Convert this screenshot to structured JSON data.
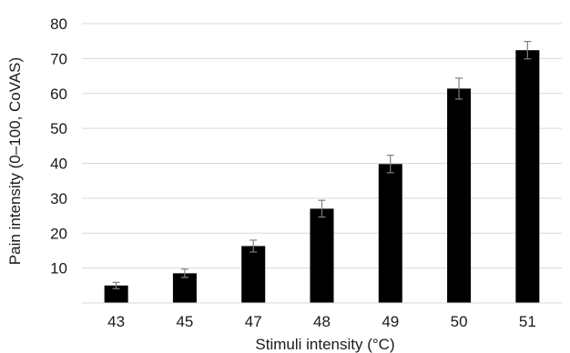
{
  "chart_data": {
    "type": "bar",
    "categories": [
      "43",
      "45",
      "47",
      "48",
      "49",
      "50",
      "51"
    ],
    "values": [
      5,
      8.5,
      16.3,
      27,
      39.8,
      61.4,
      72.4
    ],
    "error": [
      0.9,
      1.2,
      1.7,
      2.4,
      2.5,
      3.0,
      2.5
    ],
    "xlabel": "Stimuli intensity (°C)",
    "ylabel": "Pain intensity (0–100, CoVAS)",
    "ylim": [
      0,
      80
    ],
    "yticks": [
      10,
      20,
      30,
      40,
      50,
      60,
      70,
      80
    ],
    "grid": true,
    "bar_color": "#000000",
    "grid_color": "#d9d9d9",
    "error_color": "#7f7f7f"
  }
}
